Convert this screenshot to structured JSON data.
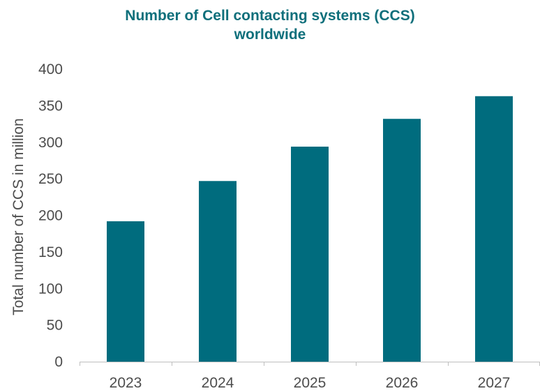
{
  "chart_data": {
    "type": "bar",
    "title_lines": [
      "Number of Cell contacting systems (CCS)",
      "worldwide"
    ],
    "title": "Number of Cell contacting systems (CCS) worldwide",
    "xlabel": "",
    "ylabel": "Total number of CCS in million",
    "categories": [
      "2023",
      "2024",
      "2025",
      "2026",
      "2027"
    ],
    "values": [
      192,
      247,
      294,
      332,
      363
    ],
    "ylim": [
      0,
      400
    ],
    "yticks": [
      0,
      50,
      100,
      150,
      200,
      250,
      300,
      350,
      400
    ],
    "grid": false,
    "legend": "none",
    "colors": {
      "bar": "#006c7e",
      "title": "#0e6f7b",
      "text": "#4d4d4d",
      "axis": "#bfbfbf"
    }
  }
}
